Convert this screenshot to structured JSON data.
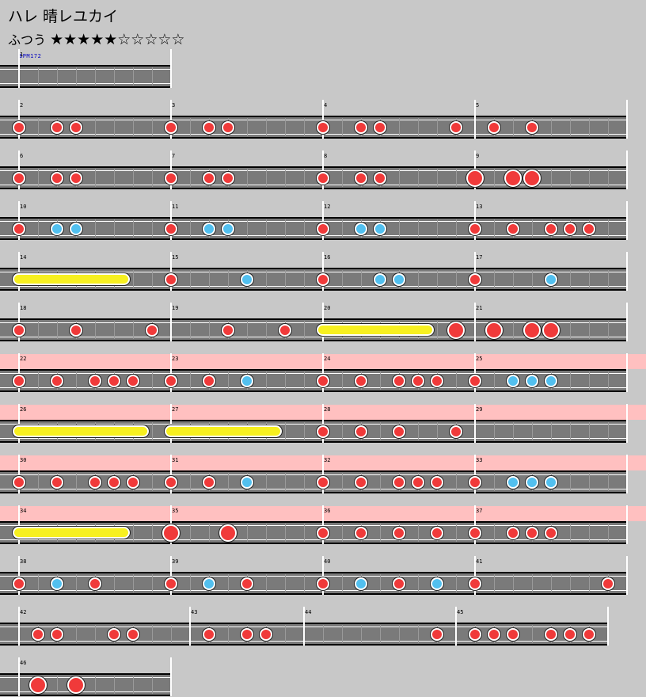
{
  "header": {
    "title": "ハレ 晴レユカイ",
    "difficulty": "ふつう",
    "stars": "★★★★★☆☆☆☆☆",
    "bpm_label": "BPM172"
  },
  "measures": [
    {
      "num": "1",
      "row": 0,
      "dur": 4,
      "notes": []
    },
    {
      "num": "2",
      "row": 1,
      "dur": 4,
      "notes": [
        [
          0,
          "d"
        ],
        [
          1,
          "d"
        ],
        [
          1.5,
          "d"
        ]
      ]
    },
    {
      "num": "3",
      "row": 1,
      "dur": 4,
      "notes": [
        [
          0,
          "d"
        ],
        [
          1,
          "d"
        ],
        [
          1.5,
          "d"
        ]
      ]
    },
    {
      "num": "4",
      "row": 1,
      "dur": 4,
      "notes": [
        [
          0,
          "d"
        ],
        [
          1,
          "d"
        ],
        [
          1.5,
          "d"
        ]
      ]
    },
    {
      "num": "5",
      "row": 1,
      "dur": 4,
      "notes": [
        [
          -0.5,
          "d"
        ],
        [
          0.5,
          "d"
        ],
        [
          1.5,
          "d"
        ]
      ]
    },
    {
      "num": "6",
      "row": 2,
      "dur": 4,
      "notes": [
        [
          0,
          "d"
        ],
        [
          1,
          "d"
        ],
        [
          1.5,
          "d"
        ]
      ]
    },
    {
      "num": "7",
      "row": 2,
      "dur": 4,
      "notes": [
        [
          0,
          "d"
        ],
        [
          1,
          "d"
        ],
        [
          1.5,
          "d"
        ]
      ]
    },
    {
      "num": "8",
      "row": 2,
      "dur": 4,
      "notes": [
        [
          0,
          "d"
        ],
        [
          1,
          "d"
        ],
        [
          1.5,
          "d"
        ]
      ]
    },
    {
      "num": "9",
      "row": 2,
      "dur": 4,
      "notes": [
        [
          0,
          "D"
        ],
        [
          1,
          "D"
        ],
        [
          1.5,
          "D"
        ]
      ]
    },
    {
      "num": "10",
      "row": 3,
      "dur": 4,
      "notes": [
        [
          0,
          "d"
        ],
        [
          1,
          "k"
        ],
        [
          1.5,
          "k"
        ]
      ]
    },
    {
      "num": "11",
      "row": 3,
      "dur": 4,
      "notes": [
        [
          0,
          "d"
        ],
        [
          1,
          "k"
        ],
        [
          1.5,
          "k"
        ]
      ]
    },
    {
      "num": "12",
      "row": 3,
      "dur": 4,
      "notes": [
        [
          0,
          "d"
        ],
        [
          1,
          "k"
        ],
        [
          1.5,
          "k"
        ]
      ]
    },
    {
      "num": "13",
      "row": 3,
      "dur": 4,
      "notes": [
        [
          0,
          "d"
        ],
        [
          1,
          "d"
        ],
        [
          2,
          "d"
        ],
        [
          2.5,
          "d"
        ],
        [
          3,
          "d"
        ]
      ]
    },
    {
      "num": "14",
      "row": 4,
      "dur": 4,
      "notes": [],
      "rolls": [
        [
          0,
          2.75
        ]
      ]
    },
    {
      "num": "15",
      "row": 4,
      "dur": 4,
      "notes": [
        [
          0,
          "d"
        ],
        [
          2,
          "k"
        ]
      ]
    },
    {
      "num": "16",
      "row": 4,
      "dur": 4,
      "notes": [
        [
          0,
          "d"
        ],
        [
          1.5,
          "k"
        ],
        [
          2,
          "k"
        ]
      ]
    },
    {
      "num": "17",
      "row": 4,
      "dur": 4,
      "notes": [
        [
          0,
          "d"
        ],
        [
          2,
          "k"
        ]
      ]
    },
    {
      "num": "18",
      "row": 5,
      "dur": 4,
      "notes": [
        [
          0,
          "d"
        ],
        [
          1.5,
          "d"
        ],
        [
          3.5,
          "d"
        ]
      ]
    },
    {
      "num": "19",
      "row": 5,
      "dur": 4,
      "notes": [
        [
          1.5,
          "d"
        ],
        [
          3,
          "d"
        ]
      ]
    },
    {
      "num": "20",
      "row": 5,
      "dur": 4,
      "notes": [
        [
          3.5,
          "D"
        ]
      ],
      "rolls": [
        [
          0,
          2.75
        ]
      ]
    },
    {
      "num": "21",
      "row": 5,
      "dur": 4,
      "notes": [
        [
          0.5,
          "D"
        ],
        [
          1.5,
          "D"
        ],
        [
          2,
          "D"
        ]
      ]
    },
    {
      "num": "22",
      "row": 6,
      "dur": 4,
      "gogo": true,
      "notes": [
        [
          0,
          "d"
        ],
        [
          1,
          "d"
        ],
        [
          2,
          "d"
        ],
        [
          2.5,
          "d"
        ],
        [
          3,
          "d"
        ]
      ]
    },
    {
      "num": "23",
      "row": 6,
      "dur": 4,
      "gogo": true,
      "notes": [
        [
          0,
          "d"
        ],
        [
          1,
          "d"
        ],
        [
          2,
          "k"
        ]
      ]
    },
    {
      "num": "24",
      "row": 6,
      "dur": 4,
      "gogo": true,
      "notes": [
        [
          0,
          "d"
        ],
        [
          1,
          "d"
        ],
        [
          2,
          "d"
        ],
        [
          2.5,
          "d"
        ],
        [
          3,
          "d"
        ]
      ]
    },
    {
      "num": "25",
      "row": 6,
      "dur": 4,
      "gogo": true,
      "notes": [
        [
          0,
          "d"
        ],
        [
          1,
          "k"
        ],
        [
          1.5,
          "k"
        ],
        [
          2,
          "k"
        ]
      ]
    },
    {
      "num": "26",
      "row": 7,
      "dur": 4,
      "gogo": true,
      "notes": [],
      "rolls": [
        [
          0,
          3.25
        ]
      ]
    },
    {
      "num": "27",
      "row": 7,
      "dur": 4,
      "gogo": true,
      "notes": [],
      "rolls": [
        [
          0,
          2.75
        ]
      ]
    },
    {
      "num": "28",
      "row": 7,
      "dur": 4,
      "gogo": true,
      "notes": [
        [
          0,
          "d"
        ],
        [
          1,
          "d"
        ],
        [
          2,
          "d"
        ],
        [
          3.5,
          "d"
        ]
      ]
    },
    {
      "num": "29",
      "row": 7,
      "dur": 4,
      "gogo": true,
      "notes": []
    },
    {
      "num": "30",
      "row": 8,
      "dur": 4,
      "gogo": true,
      "notes": [
        [
          0,
          "d"
        ],
        [
          1,
          "d"
        ],
        [
          2,
          "d"
        ],
        [
          2.5,
          "d"
        ],
        [
          3,
          "d"
        ]
      ]
    },
    {
      "num": "31",
      "row": 8,
      "dur": 4,
      "gogo": true,
      "notes": [
        [
          0,
          "d"
        ],
        [
          1,
          "d"
        ],
        [
          2,
          "k"
        ]
      ]
    },
    {
      "num": "32",
      "row": 8,
      "dur": 4,
      "gogo": true,
      "notes": [
        [
          0,
          "d"
        ],
        [
          1,
          "d"
        ],
        [
          2,
          "d"
        ],
        [
          2.5,
          "d"
        ],
        [
          3,
          "d"
        ]
      ]
    },
    {
      "num": "33",
      "row": 8,
      "dur": 4,
      "gogo": true,
      "notes": [
        [
          0,
          "d"
        ],
        [
          1,
          "k"
        ],
        [
          1.5,
          "k"
        ],
        [
          2,
          "k"
        ]
      ]
    },
    {
      "num": "34",
      "row": 9,
      "dur": 4,
      "gogo": true,
      "notes": [],
      "rolls": [
        [
          0,
          2.75
        ]
      ]
    },
    {
      "num": "35",
      "row": 9,
      "dur": 4,
      "gogo": true,
      "notes": [
        [
          0,
          "D"
        ],
        [
          1.5,
          "D"
        ]
      ]
    },
    {
      "num": "36",
      "row": 9,
      "dur": 4,
      "gogo": true,
      "notes": [
        [
          0,
          "d"
        ],
        [
          1,
          "d"
        ],
        [
          2,
          "d"
        ],
        [
          3,
          "d"
        ]
      ]
    },
    {
      "num": "37",
      "row": 9,
      "dur": 4,
      "gogo": true,
      "notes": [
        [
          0,
          "d"
        ],
        [
          1,
          "d"
        ],
        [
          1.5,
          "d"
        ],
        [
          2,
          "d"
        ]
      ]
    },
    {
      "num": "38",
      "row": 10,
      "dur": 4,
      "notes": [
        [
          0,
          "d"
        ],
        [
          1,
          "k"
        ],
        [
          2,
          "d"
        ]
      ]
    },
    {
      "num": "39",
      "row": 10,
      "dur": 4,
      "notes": [
        [
          0,
          "d"
        ],
        [
          1,
          "k"
        ],
        [
          2,
          "d"
        ]
      ]
    },
    {
      "num": "40",
      "row": 10,
      "dur": 4,
      "notes": [
        [
          0,
          "d"
        ],
        [
          1,
          "k"
        ],
        [
          2,
          "d"
        ],
        [
          3,
          "k"
        ]
      ]
    },
    {
      "num": "41",
      "row": 10,
      "dur": 4,
      "notes": [
        [
          0,
          "d"
        ],
        [
          3.5,
          "d"
        ]
      ]
    },
    {
      "num": "42",
      "row": 11,
      "dur": 4.5,
      "notes": [
        [
          0.5,
          "d"
        ],
        [
          1,
          "d"
        ],
        [
          2.5,
          "d"
        ],
        [
          3,
          "d"
        ]
      ]
    },
    {
      "num": "43",
      "row": 11,
      "dur": 3,
      "notes": [
        [
          0.5,
          "d"
        ],
        [
          1.5,
          "d"
        ],
        [
          2,
          "d"
        ]
      ]
    },
    {
      "num": "44",
      "row": 11,
      "dur": 4,
      "notes": [
        [
          3.5,
          "d"
        ]
      ]
    },
    {
      "num": "45",
      "row": 11,
      "dur": 4,
      "notes": [
        [
          0.5,
          "d"
        ],
        [
          1,
          "d"
        ],
        [
          1.5,
          "d"
        ],
        [
          2.5,
          "d"
        ],
        [
          3,
          "d"
        ],
        [
          3.5,
          "d"
        ]
      ]
    },
    {
      "num": "46",
      "row": 12,
      "dur": 4,
      "notes": [
        [
          0.5,
          "D"
        ],
        [
          1.5,
          "D"
        ]
      ]
    }
  ],
  "colors": {
    "don": "#f03a3a",
    "ka": "#52c0ef",
    "roll": "#f7f020",
    "gogo": "#ffc0c0",
    "lane": "#7a7a7a"
  }
}
